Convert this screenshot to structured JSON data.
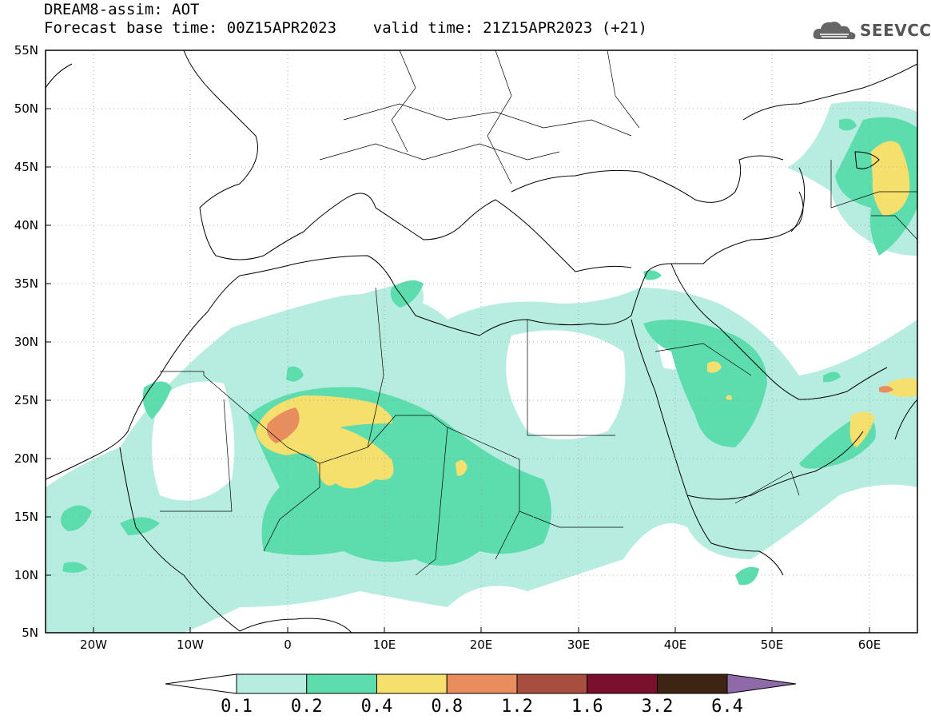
{
  "title": {
    "line1": "DREAM8-assim: AOT",
    "line2": "Forecast base time: 00Z15APR2023    valid time: 21Z15APR2023 (+21)"
  },
  "logo": {
    "text": "SEEVCCC",
    "icon": "cloud-icon"
  },
  "axes": {
    "lat_labels": [
      "55N",
      "50N",
      "45N",
      "40N",
      "35N",
      "30N",
      "25N",
      "20N",
      "15N",
      "10N",
      "5N"
    ],
    "lon_labels": [
      "20W",
      "10W",
      "0",
      "10E",
      "20E",
      "30E",
      "40E",
      "50E",
      "60E"
    ],
    "lon_range": [
      -25,
      65
    ],
    "lat_range": [
      5,
      55
    ]
  },
  "colorbar": {
    "labels": [
      "0.1",
      "0.2",
      "0.4",
      "0.8",
      "1.2",
      "1.6",
      "3.2",
      "6.4"
    ],
    "colors": [
      "#ffffff",
      "#b7ede1",
      "#5ddcae",
      "#f5e06e",
      "#e88d5e",
      "#a84e3e",
      "#7a0f2e",
      "#3d2512",
      "#8e6aa8"
    ]
  }
}
